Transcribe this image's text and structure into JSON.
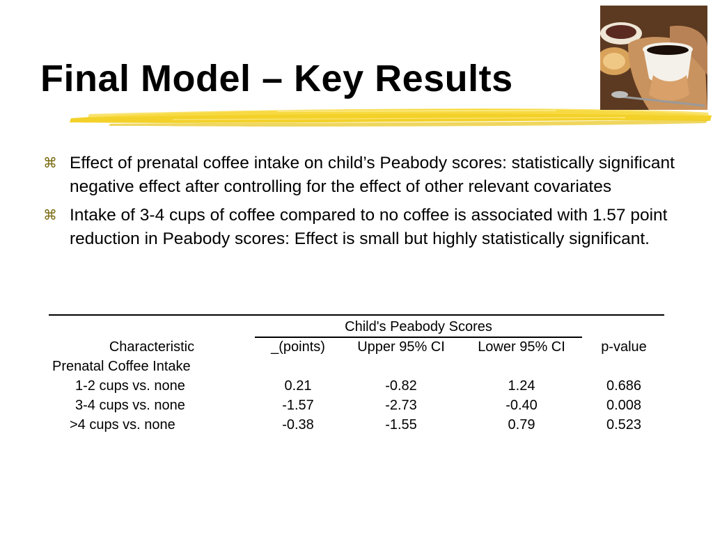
{
  "slide": {
    "title": "Final Model – Key Results"
  },
  "bullets": [
    {
      "icon": "zapf-bullet-icon",
      "text": "Effect of prenatal coffee intake on child’s Peabody scores: statistically significant negative effect after controlling for the effect of other relevant covariates"
    },
    {
      "icon": "zapf-bullet-icon",
      "text": "Intake of 3-4 cups of coffee compared to no coffee is associated with 1.57 point reduction in Peabody scores: Effect is small but highly statistically significant."
    }
  ],
  "table": {
    "group_header": "Child's Peabody Scores",
    "columns": [
      "Characteristic",
      "_(points)",
      "Upper 95% CI",
      "Lower 95% CI",
      "p-value"
    ],
    "section_label": "Prenatal Coffee Intake",
    "rows": [
      {
        "label": "1-2 cups vs. none",
        "points": "0.21",
        "upper": "-0.82",
        "lower": "1.24",
        "p": "0.686"
      },
      {
        "label": "3-4 cups vs. none",
        "points": "-1.57",
        "upper": "-2.73",
        "lower": "-0.40",
        "p": "0.008"
      },
      {
        "label": ">4 cups vs. none",
        "points": "-0.38",
        "upper": "-1.55",
        "lower": "0.79",
        "p": "0.523"
      }
    ]
  },
  "colors": {
    "highlight": "#f2cf1e",
    "bullet": "#7a6a10"
  },
  "images": {
    "photo": "coffee-cup-photo"
  }
}
